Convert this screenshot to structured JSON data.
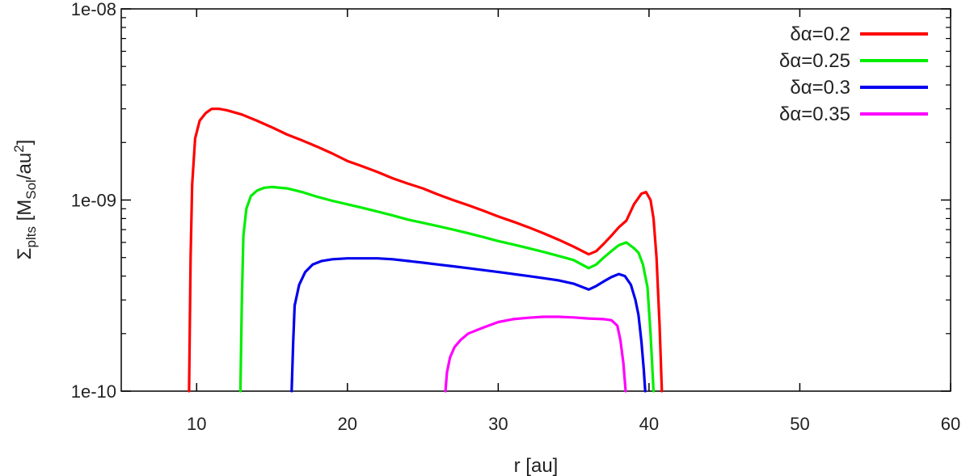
{
  "chart_data": {
    "type": "line",
    "xlabel": "r [au]",
    "ylabel": {
      "symbol": "Σ",
      "symbol_sub": "plts",
      "unit_open": " [M",
      "unit_sub": "Sol",
      "unit_mid": "/au",
      "unit_sup": "2",
      "unit_close": "]"
    },
    "xlim": [
      5,
      60
    ],
    "ylim": [
      1e-10,
      1e-08
    ],
    "yscale": "log",
    "xticks": [
      10,
      20,
      30,
      40,
      50,
      60
    ],
    "xtick_labels": [
      "10",
      "20",
      "30",
      "40",
      "50",
      "60"
    ],
    "yticks": [
      1e-10,
      1e-09,
      1e-08
    ],
    "ytick_labels": [
      "1e-10",
      "1e-09",
      "1e-08"
    ],
    "grid": false,
    "legend_position": "top-right",
    "series": [
      {
        "name": "δα=0.2",
        "color": "#ff0000",
        "x": [
          9.5,
          9.6,
          9.7,
          9.9,
          10.2,
          10.6,
          11.0,
          11.5,
          12.0,
          13,
          14,
          15,
          16,
          17,
          18,
          19,
          20,
          21,
          22,
          23,
          24,
          25,
          26,
          27,
          28,
          29,
          30,
          31,
          32,
          33,
          34,
          35,
          36,
          36.5,
          37,
          37.5,
          38,
          38.5,
          39,
          39.5,
          39.8,
          40.1,
          40.3,
          40.5,
          40.7,
          40.85
        ],
        "y": [
          1e-10,
          5e-10,
          1.2e-09,
          2.1e-09,
          2.6e-09,
          2.85e-09,
          3e-09,
          3e-09,
          2.95e-09,
          2.8e-09,
          2.6e-09,
          2.4e-09,
          2.2e-09,
          2.05e-09,
          1.9e-09,
          1.75e-09,
          1.6e-09,
          1.5e-09,
          1.4e-09,
          1.3e-09,
          1.22e-09,
          1.15e-09,
          1.07e-09,
          1e-09,
          9.4e-10,
          8.8e-10,
          8.2e-10,
          7.7e-10,
          7.2e-10,
          6.7e-10,
          6.2e-10,
          5.7e-10,
          5.2e-10,
          5.4e-10,
          5.9e-10,
          6.5e-10,
          7.2e-10,
          7.8e-10,
          9.5e-10,
          1.08e-09,
          1.1e-09,
          1e-09,
          8e-10,
          5e-10,
          2.2e-10,
          1e-10
        ]
      },
      {
        "name": "δα=0.25",
        "color": "#00ee00",
        "x": [
          12.9,
          13.0,
          13.1,
          13.3,
          13.6,
          14.0,
          14.5,
          15,
          16,
          17,
          18,
          19,
          20,
          21,
          22,
          23,
          24,
          25,
          26,
          27,
          28,
          29,
          30,
          31,
          32,
          33,
          34,
          35,
          36,
          36.5,
          37,
          37.5,
          38,
          38.5,
          39,
          39.3,
          39.6,
          39.9,
          40.1,
          40.3
        ],
        "y": [
          1e-10,
          3e-10,
          6.5e-10,
          9e-10,
          1.05e-09,
          1.12e-09,
          1.16e-09,
          1.17e-09,
          1.15e-09,
          1.1e-09,
          1.04e-09,
          9.9e-10,
          9.5e-10,
          9.1e-10,
          8.7e-10,
          8.3e-10,
          7.9e-10,
          7.6e-10,
          7.3e-10,
          7e-10,
          6.7e-10,
          6.4e-10,
          6.1e-10,
          5.85e-10,
          5.6e-10,
          5.35e-10,
          5.1e-10,
          4.85e-10,
          4.4e-10,
          4.6e-10,
          5e-10,
          5.4e-10,
          5.8e-10,
          6e-10,
          5.6e-10,
          5.3e-10,
          4.6e-10,
          3.5e-10,
          2e-10,
          1e-10
        ]
      },
      {
        "name": "δα=0.3",
        "color": "#0000ee",
        "x": [
          16.3,
          16.4,
          16.5,
          16.8,
          17.2,
          17.7,
          18.3,
          19,
          20,
          21,
          22,
          23,
          24,
          25,
          26,
          27,
          28,
          29,
          30,
          31,
          32,
          33,
          34,
          35,
          36,
          36.5,
          37,
          37.5,
          38,
          38.4,
          38.8,
          39.1,
          39.3,
          39.5,
          39.65,
          39.75
        ],
        "y": [
          1e-10,
          1.8e-10,
          2.8e-10,
          3.6e-10,
          4.2e-10,
          4.6e-10,
          4.8e-10,
          4.9e-10,
          4.95e-10,
          4.95e-10,
          4.95e-10,
          4.9e-10,
          4.8e-10,
          4.7e-10,
          4.6e-10,
          4.5e-10,
          4.4e-10,
          4.3e-10,
          4.2e-10,
          4.1e-10,
          4e-10,
          3.9e-10,
          3.8e-10,
          3.65e-10,
          3.4e-10,
          3.55e-10,
          3.75e-10,
          3.95e-10,
          4.1e-10,
          4e-10,
          3.6e-10,
          3e-10,
          2.5e-10,
          1.8e-10,
          1.3e-10,
          1e-10
        ]
      },
      {
        "name": "δα=0.35",
        "color": "#ff00ff",
        "x": [
          26.5,
          26.6,
          26.8,
          27.1,
          27.5,
          28,
          29,
          30,
          31,
          32,
          33,
          34,
          35,
          36,
          37,
          37.5,
          37.9,
          38.1,
          38.3,
          38.45
        ],
        "y": [
          1e-10,
          1.25e-10,
          1.5e-10,
          1.7e-10,
          1.85e-10,
          2e-10,
          2.15e-10,
          2.3e-10,
          2.38e-10,
          2.42e-10,
          2.45e-10,
          2.45e-10,
          2.43e-10,
          2.4e-10,
          2.38e-10,
          2.35e-10,
          2.2e-10,
          1.85e-10,
          1.4e-10,
          1e-10
        ]
      }
    ]
  }
}
